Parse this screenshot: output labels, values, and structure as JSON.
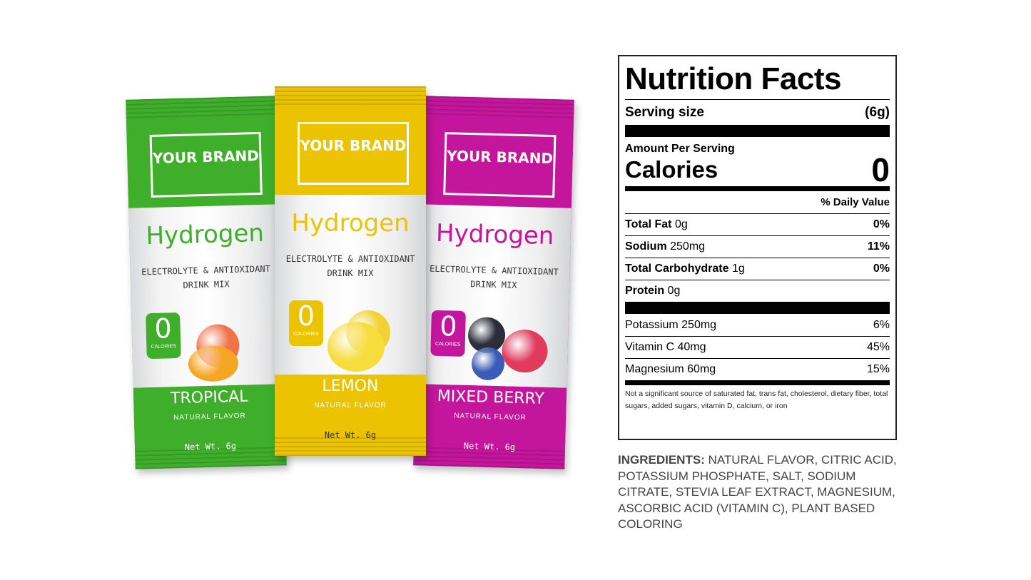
{
  "packets": [
    {
      "brand": "YOUR BRAND",
      "product": "Hydrogen",
      "subtitle": "ELECTROLYTE & ANTIOXIDANT DRINK MIX",
      "calories_value": "0",
      "calories_label": "CALORIES",
      "flavor": "TROPICAL",
      "flavor_note": "NATURAL FLAVOR",
      "net_weight": "Net Wt. 6g",
      "color": "#3fae2a"
    },
    {
      "brand": "YOUR BRAND",
      "product": "Hydrogen",
      "subtitle": "ELECTROLYTE & ANTIOXIDANT DRINK MIX",
      "calories_value": "0",
      "calories_label": "CALORIES",
      "flavor": "LEMON",
      "flavor_note": "NATURAL FLAVOR",
      "net_weight": "Net Wt. 6g",
      "color": "#ecc300"
    },
    {
      "brand": "YOUR BRAND",
      "product": "Hydrogen",
      "subtitle": "ELECTROLYTE & ANTIOXIDANT DRINK MIX",
      "calories_value": "0",
      "calories_label": "CALORIES",
      "flavor": "MIXED BERRY",
      "flavor_note": "NATURAL FLAVOR",
      "net_weight": "Net Wt. 6g",
      "color": "#c4169c"
    }
  ],
  "nutrition": {
    "title": "Nutrition Facts",
    "serving_label": "Serving size",
    "serving_value": "(6g)",
    "amount_label": "Amount Per Serving",
    "calories_label": "Calories",
    "calories_value": "0",
    "dv_header": "% Daily Value",
    "rows": [
      {
        "name": "Total Fat",
        "amount": "0g",
        "dv": "0%"
      },
      {
        "name": "Sodium",
        "amount": "250mg",
        "dv": "11%"
      },
      {
        "name": "Total Carbohydrate",
        "amount": "1g",
        "dv": "0%"
      },
      {
        "name": "Protein",
        "amount": "0g",
        "dv": ""
      }
    ],
    "minerals": [
      {
        "name": "Potassium 250mg",
        "dv": "6%"
      },
      {
        "name": "Vitamin C 40mg",
        "dv": "45%"
      },
      {
        "name": "Magnesium 60mg",
        "dv": "15%"
      }
    ],
    "footnote": "Not a significant source of saturated fat, trans fat, cholesterol, dietary fiber, total sugars, added sugars, vitamin D, calcium, or iron"
  },
  "ingredients": {
    "label": "INGREDIENTS:",
    "text": " NATURAL FLAVOR, CITRIC ACID, POTASSIUM PHOSPHATE, SALT, SODIUM CITRATE, STEVIA LEAF EXTRACT, MAGNESIUM, ASCORBIC ACID (VITAMIN C), PLANT BASED COLORING"
  }
}
